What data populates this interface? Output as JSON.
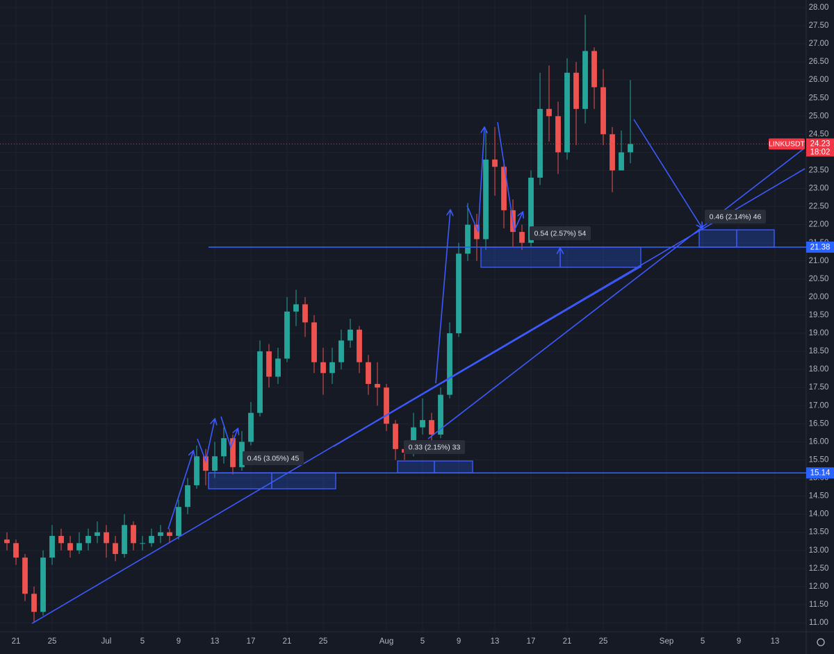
{
  "chart_data": {
    "type": "candlestick",
    "x": [
      -1,
      0,
      1,
      2,
      3,
      4,
      5,
      6,
      7,
      8,
      9,
      10,
      11,
      12,
      13,
      14,
      15,
      16,
      17,
      18,
      19,
      20,
      21,
      22,
      23,
      24,
      25,
      26,
      27,
      28,
      29,
      30,
      31,
      32,
      33,
      34,
      35,
      36,
      37,
      38,
      39,
      40,
      41,
      42,
      43,
      44,
      45,
      46,
      47,
      48,
      49,
      50,
      51,
      52,
      53,
      54,
      55,
      56,
      57,
      58,
      59,
      60,
      61,
      62,
      63,
      64,
      65,
      66,
      67,
      68
    ],
    "open": [
      13.3,
      13.2,
      12.8,
      11.8,
      11.3,
      12.8,
      13.4,
      13.2,
      13.0,
      13.2,
      13.4,
      13.5,
      13.2,
      12.9,
      13.7,
      13.2,
      13.2,
      13.4,
      13.5,
      13.4,
      14.2,
      14.8,
      15.6,
      15.2,
      15.6,
      16.1,
      15.3,
      16.0,
      16.8,
      18.5,
      17.8,
      18.3,
      19.6,
      19.8,
      19.3,
      18.2,
      17.9,
      18.2,
      18.8,
      19.1,
      18.2,
      17.6,
      17.5,
      16.5,
      15.8,
      15.7,
      16.4,
      16.6,
      16.2,
      17.3,
      19.0,
      21.2,
      22.0,
      21.6,
      23.8,
      23.6,
      22.4,
      21.8,
      21.5,
      23.3,
      25.2,
      25.0,
      24.0,
      26.2,
      25.2,
      26.8,
      25.8,
      24.5,
      23.5,
      24.0
    ],
    "high": [
      13.5,
      13.3,
      12.9,
      12.0,
      13.0,
      13.7,
      13.6,
      13.4,
      13.5,
      13.6,
      13.8,
      13.7,
      13.4,
      14.0,
      13.8,
      13.4,
      13.6,
      13.7,
      13.6,
      14.4,
      15.0,
      15.9,
      15.8,
      16.0,
      16.4,
      16.2,
      16.3,
      17.1,
      18.8,
      18.7,
      18.6,
      20.0,
      20.2,
      20.0,
      19.5,
      18.6,
      18.6,
      19.1,
      19.4,
      19.2,
      18.4,
      18.2,
      17.6,
      16.6,
      16.0,
      16.8,
      17.2,
      16.8,
      17.5,
      19.3,
      21.5,
      22.6,
      22.3,
      24.6,
      24.7,
      23.8,
      22.7,
      22.0,
      23.5,
      26.2,
      26.4,
      25.4,
      26.6,
      26.5,
      27.8,
      26.9,
      26.3,
      24.7,
      24.6,
      26.0
    ],
    "low": [
      13.0,
      12.6,
      11.6,
      11.0,
      11.2,
      12.6,
      13.0,
      12.8,
      12.9,
      13.0,
      13.2,
      12.8,
      12.7,
      12.8,
      13.0,
      13.0,
      13.1,
      13.2,
      13.2,
      13.3,
      14.0,
      14.7,
      14.8,
      15.0,
      15.4,
      15.1,
      15.2,
      15.9,
      16.7,
      17.5,
      17.6,
      18.2,
      19.2,
      18.9,
      17.9,
      17.3,
      17.6,
      18.0,
      18.6,
      17.9,
      17.3,
      17.0,
      16.3,
      15.5,
      15.5,
      15.6,
      16.2,
      16.0,
      16.1,
      17.2,
      18.9,
      21.0,
      21.0,
      21.3,
      22.8,
      21.9,
      21.4,
      21.3,
      21.4,
      23.1,
      24.3,
      23.4,
      23.8,
      24.2,
      24.8,
      25.2,
      24.2,
      22.9,
      23.6,
      23.7
    ],
    "close": [
      13.2,
      12.8,
      11.8,
      11.3,
      12.8,
      13.4,
      13.2,
      13.0,
      13.2,
      13.4,
      13.5,
      13.2,
      12.9,
      13.7,
      13.2,
      13.2,
      13.4,
      13.5,
      13.4,
      14.2,
      14.8,
      15.6,
      15.2,
      15.6,
      16.1,
      15.3,
      16.0,
      16.8,
      18.5,
      17.8,
      18.3,
      19.6,
      19.8,
      19.3,
      18.2,
      17.9,
      18.2,
      18.8,
      19.1,
      18.2,
      17.6,
      17.5,
      16.5,
      15.8,
      15.7,
      16.4,
      16.6,
      16.2,
      17.3,
      19.0,
      21.2,
      22.0,
      21.6,
      23.8,
      23.6,
      22.4,
      21.8,
      21.5,
      23.3,
      25.2,
      25.0,
      24.0,
      26.2,
      25.2,
      26.8,
      25.8,
      24.5,
      23.5,
      24.0,
      24.23
    ],
    "up_color": "#26a69a",
    "down_color": "#ef5350",
    "xlim": [
      -1.77,
      87.46
    ],
    "xticks": [
      {
        "value": 0,
        "label": "21"
      },
      {
        "value": 4,
        "label": "25"
      },
      {
        "value": 10,
        "label": "Jul"
      },
      {
        "value": 14,
        "label": "5"
      },
      {
        "value": 18,
        "label": "9"
      },
      {
        "value": 22,
        "label": "13"
      },
      {
        "value": 26,
        "label": "17"
      },
      {
        "value": 30,
        "label": "21"
      },
      {
        "value": 34,
        "label": "25"
      },
      {
        "value": 41,
        "label": "Aug"
      },
      {
        "value": 45,
        "label": "5"
      },
      {
        "value": 49,
        "label": "9"
      },
      {
        "value": 53,
        "label": "13"
      },
      {
        "value": 57,
        "label": "17"
      },
      {
        "value": 61,
        "label": "21"
      },
      {
        "value": 65,
        "label": "25"
      },
      {
        "value": 72,
        "label": "Sep"
      },
      {
        "value": 76,
        "label": "5"
      },
      {
        "value": 80,
        "label": "9"
      },
      {
        "value": 84,
        "label": "13"
      }
    ],
    "ylim": [
      10.75,
      28.21
    ],
    "yticks": [
      {
        "value": 11,
        "label": "11.00"
      },
      {
        "value": 11.5,
        "label": "11.50"
      },
      {
        "value": 12,
        "label": "12.00"
      },
      {
        "value": 12.5,
        "label": "12.50"
      },
      {
        "value": 13,
        "label": "13.00"
      },
      {
        "value": 13.5,
        "label": "13.50"
      },
      {
        "value": 14,
        "label": "14.00"
      },
      {
        "value": 14.5,
        "label": "14.50"
      },
      {
        "value": 15,
        "label": "15.00"
      },
      {
        "value": 15.5,
        "label": "15.50"
      },
      {
        "value": 16,
        "label": "16.00"
      },
      {
        "value": 16.5,
        "label": "16.50"
      },
      {
        "value": 17,
        "label": "17.00"
      },
      {
        "value": 17.5,
        "label": "17.50"
      },
      {
        "value": 18,
        "label": "18.00"
      },
      {
        "value": 18.5,
        "label": "18.50"
      },
      {
        "value": 19,
        "label": "19.00"
      },
      {
        "value": 19.5,
        "label": "19.50"
      },
      {
        "value": 20,
        "label": "20.00"
      },
      {
        "value": 20.5,
        "label": "20.50"
      },
      {
        "value": 21,
        "label": "21.00"
      },
      {
        "value": 21.5,
        "label": "21.50"
      },
      {
        "value": 22,
        "label": "22.00"
      },
      {
        "value": 22.5,
        "label": "22.50"
      },
      {
        "value": 23,
        "label": "23.00"
      },
      {
        "value": 23.5,
        "label": "23.50"
      },
      {
        "value": 24,
        "label": "24.00"
      },
      {
        "value": 24.5,
        "label": "24.50"
      },
      {
        "value": 25,
        "label": "25.00"
      },
      {
        "value": 25.5,
        "label": "25.50"
      },
      {
        "value": 26,
        "label": "26.00"
      },
      {
        "value": 26.5,
        "label": "26.50"
      },
      {
        "value": 27,
        "label": "27.00"
      },
      {
        "value": 27.5,
        "label": "27.50"
      },
      {
        "value": 28,
        "label": "28.00"
      }
    ],
    "grid": true,
    "price_lines": [
      {
        "value": 21.38,
        "color": "#2962ff"
      },
      {
        "value": 15.14,
        "color": "#2962ff"
      }
    ],
    "last_price": {
      "symbol": "LINKUSDT",
      "value": 24.23,
      "countdown": "18:02",
      "color": "#f23645"
    },
    "annotations": [
      "0.45 (3.05%) 45",
      "0.33 (2.15%) 33",
      "0.54 (2.57%) 54",
      "0.46 (2.14%) 46"
    ]
  }
}
